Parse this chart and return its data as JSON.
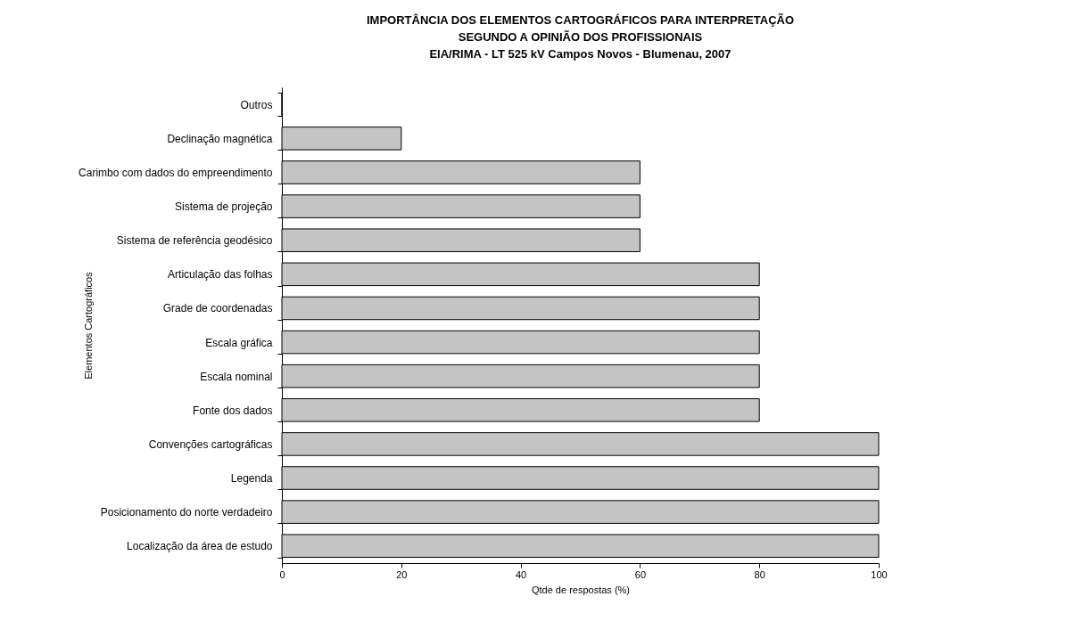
{
  "chart_data": {
    "type": "bar",
    "orientation": "horizontal",
    "title": [
      "IMPORTÂNCIA DOS ELEMENTOS CARTOGRÁFICOS PARA INTERPRETAÇÃO",
      "SEGUNDO A OPINIÃO DOS PROFISSIONAIS",
      "EIA/RIMA - LT 525 kV Campos Novos - Blumenau, 2007"
    ],
    "xlabel": "Qtde de respostas (%)",
    "ylabel": "Elementos Cartográficos",
    "categories": [
      "Outros",
      "Declinação magnética",
      "Carimbo com dados do empreendimento",
      "Sistema de projeção",
      "Sistema de referência geodésico",
      "Articulação das folhas",
      "Grade de coordenadas",
      "Escala gráfica",
      "Escala nominal",
      "Fonte dos dados",
      "Convenções cartográficas",
      "Legenda",
      "Posicionamento do norte verdadeiro",
      "Localização da área de estudo"
    ],
    "values": [
      0,
      20,
      60,
      60,
      60,
      80,
      80,
      80,
      80,
      80,
      100,
      100,
      100,
      100
    ],
    "color": "#c4c4c4",
    "xlim": [
      0,
      100
    ],
    "xticks": [
      0,
      20,
      40,
      60,
      80,
      100
    ],
    "grid": false
  }
}
